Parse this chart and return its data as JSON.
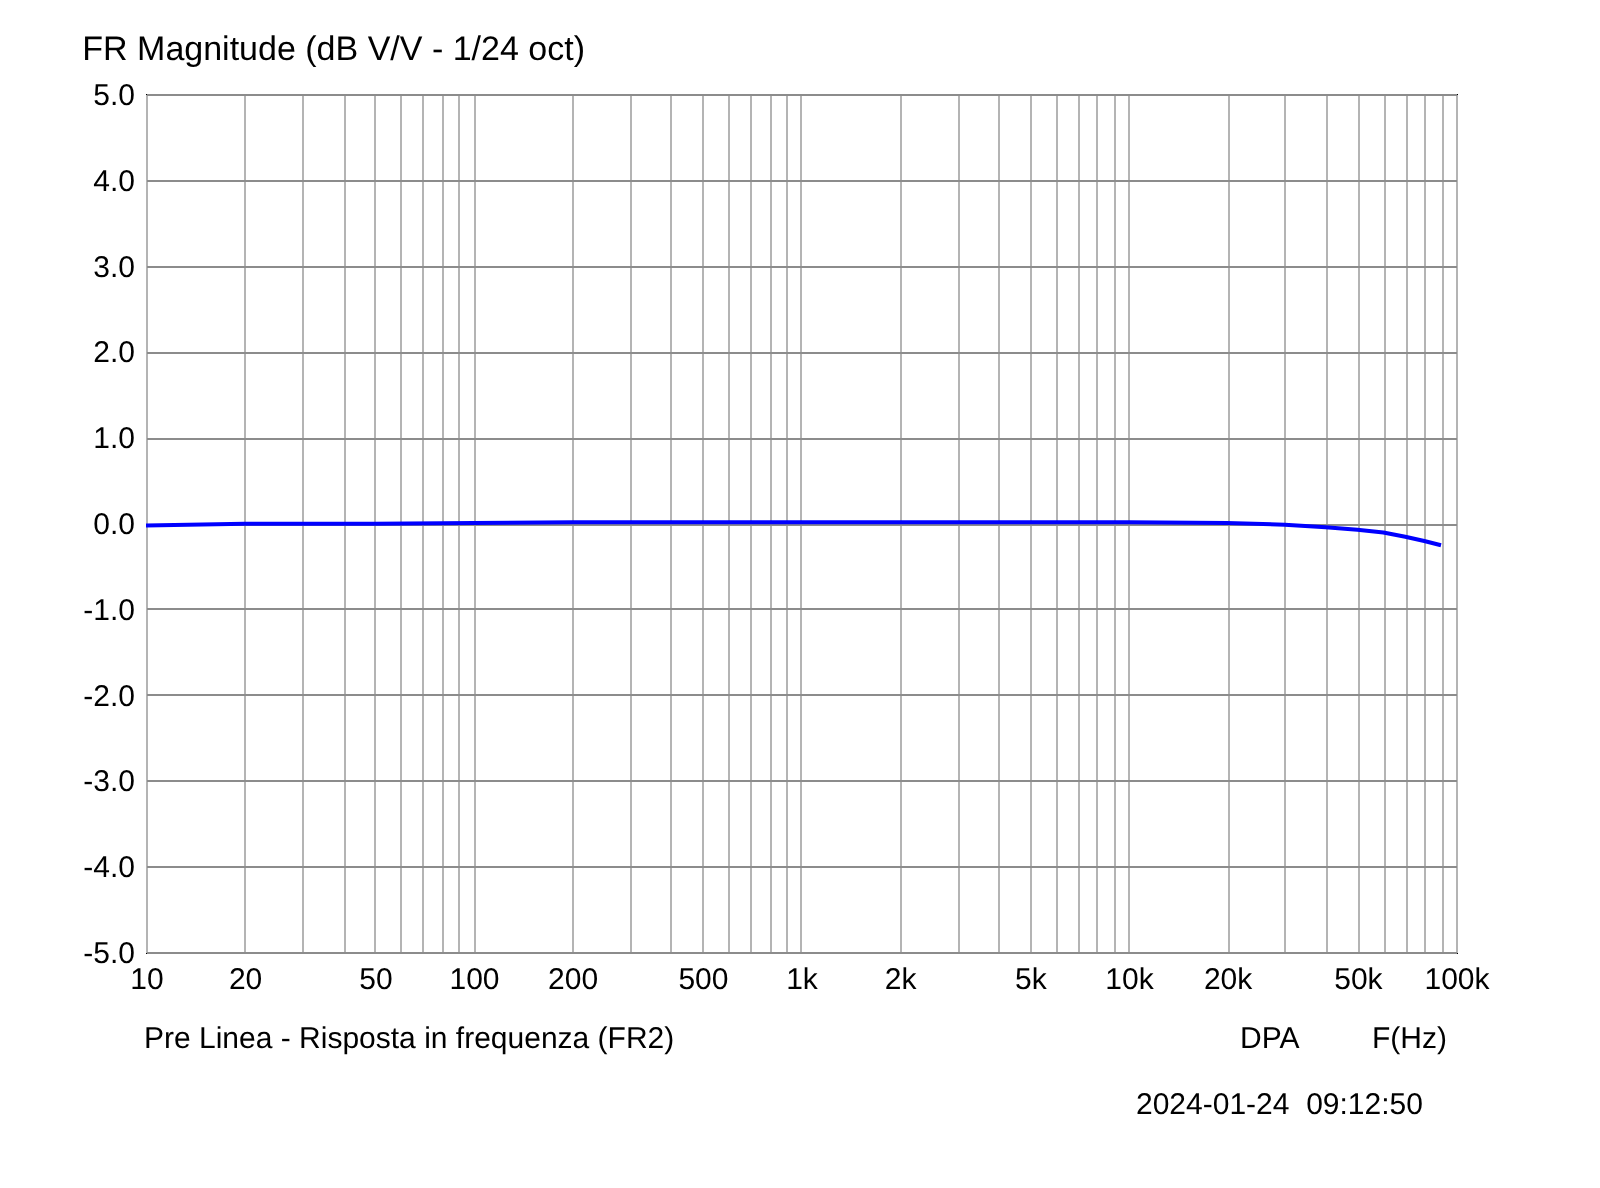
{
  "chart_data": {
    "type": "line",
    "title": "FR Magnitude (dB V/V - 1/24 oct)",
    "subtitle": "Pre Linea - Risposta in frequenza (FR2)",
    "xlabel": "F(Hz)",
    "annotations": [
      "DPA",
      "2024-01-24  09:12:50"
    ],
    "x": [
      10,
      20,
      50,
      100,
      200,
      500,
      1000,
      2000,
      5000,
      10000,
      20000,
      30000,
      40000,
      50000,
      60000,
      70000,
      80000,
      90000
    ],
    "series": [
      {
        "color": "#0000ff",
        "values": [
          -0.03,
          -0.01,
          -0.01,
          0.0,
          0.01,
          0.01,
          0.01,
          0.01,
          0.01,
          0.01,
          0.0,
          -0.02,
          -0.05,
          -0.08,
          -0.11,
          -0.16,
          -0.21,
          -0.26
        ]
      }
    ],
    "log": "x",
    "xlim": [
      10,
      100000
    ],
    "xticks": [
      10,
      20,
      {
        "value": 30,
        "label": null
      },
      {
        "value": 40,
        "label": null
      },
      50,
      {
        "value": 60,
        "label": null
      },
      {
        "value": 70,
        "label": null
      },
      {
        "value": 80,
        "label": null
      },
      {
        "value": 90,
        "label": null
      },
      100,
      200,
      {
        "value": 300,
        "label": null
      },
      {
        "value": 400,
        "label": null
      },
      500,
      {
        "value": 600,
        "label": null
      },
      {
        "value": 700,
        "label": null
      },
      {
        "value": 800,
        "label": null
      },
      {
        "value": 900,
        "label": null
      },
      {
        "value": 1000,
        "label": "1k"
      },
      {
        "value": 2000,
        "label": "2k"
      },
      {
        "value": 3000,
        "label": null
      },
      {
        "value": 4000,
        "label": null
      },
      {
        "value": 5000,
        "label": "5k"
      },
      {
        "value": 6000,
        "label": null
      },
      {
        "value": 7000,
        "label": null
      },
      {
        "value": 8000,
        "label": null
      },
      {
        "value": 9000,
        "label": null
      },
      {
        "value": 10000,
        "label": "10k"
      },
      {
        "value": 20000,
        "label": "20k"
      },
      {
        "value": 30000,
        "label": null
      },
      {
        "value": 40000,
        "label": null
      },
      {
        "value": 50000,
        "label": "50k"
      },
      {
        "value": 60000,
        "label": null
      },
      {
        "value": 70000,
        "label": null
      },
      {
        "value": 80000,
        "label": null
      },
      {
        "value": 90000,
        "label": null
      },
      {
        "value": 100000,
        "label": "100k"
      }
    ],
    "ylim": [
      -5,
      5
    ],
    "yticks": [
      {
        "value": -5,
        "label": "-5.0"
      },
      {
        "value": -4,
        "label": "-4.0"
      },
      {
        "value": -3,
        "label": "-3.0"
      },
      {
        "value": -2,
        "label": "-2.0"
      },
      {
        "value": -1,
        "label": "-1.0"
      },
      {
        "value": 0,
        "label": "0.0"
      },
      {
        "value": 1,
        "label": "1.0"
      },
      {
        "value": 2,
        "label": "2.0"
      },
      {
        "value": 3,
        "label": "3.0"
      },
      {
        "value": 4,
        "label": "4.0"
      },
      {
        "value": 5,
        "label": "5.0"
      }
    ],
    "grid": true
  }
}
